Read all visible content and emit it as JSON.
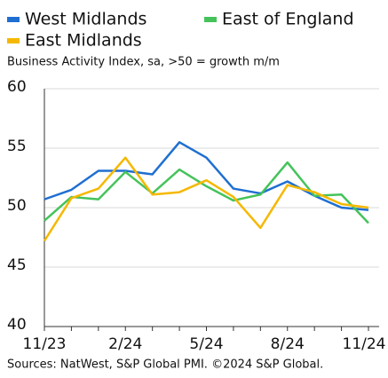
{
  "chart_data": {
    "type": "line",
    "subtitle": "Business Activity Index, sa, >50 = growth m/m",
    "source": "Sources: NatWest, S&P Global PMI. ©2024 S&P Global.",
    "categories": [
      "11/23",
      null,
      null,
      "2/24",
      null,
      null,
      "5/24",
      null,
      null,
      "8/24",
      null,
      null,
      "11/24"
    ],
    "series": [
      {
        "name": "West Midlands",
        "color": "#1f6fd1",
        "values": [
          50.7,
          51.5,
          53.1,
          53.1,
          52.8,
          55.5,
          54.2,
          51.6,
          51.2,
          52.2,
          51.0,
          50.0,
          49.8
        ]
      },
      {
        "name": "East of England",
        "color": "#45c35a",
        "values": [
          48.9,
          50.9,
          50.7,
          53.0,
          51.2,
          53.2,
          51.8,
          50.6,
          51.1,
          53.8,
          51.0,
          51.1,
          48.7
        ]
      },
      {
        "name": "East Midlands",
        "color": "#f5b800",
        "values": [
          47.2,
          50.8,
          51.6,
          54.2,
          51.1,
          51.3,
          52.3,
          50.9,
          48.3,
          51.9,
          51.3,
          50.3,
          50.0
        ]
      }
    ],
    "ylim": [
      40,
      60
    ],
    "yticks": [
      40,
      45,
      50,
      55,
      60
    ],
    "grid": true,
    "legend_position": "top"
  }
}
